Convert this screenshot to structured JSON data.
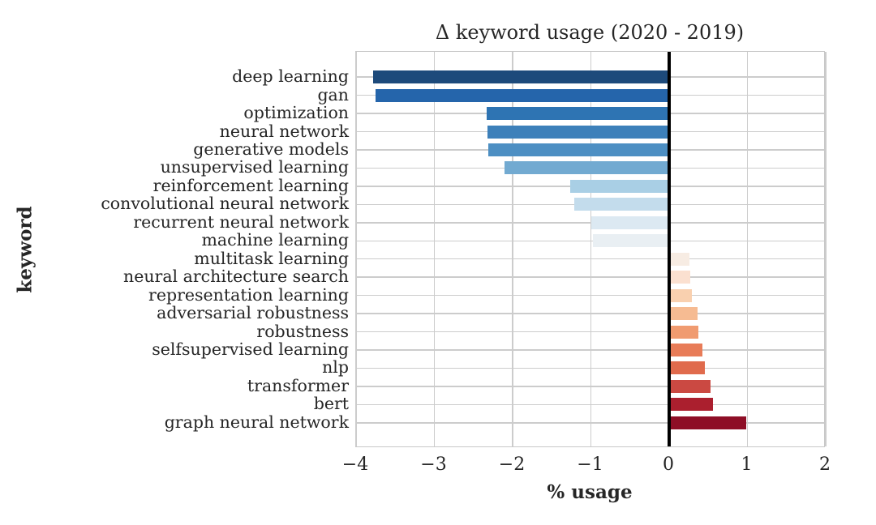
{
  "chart_data": {
    "type": "bar",
    "orientation": "horizontal",
    "title": "Δ keyword usage (2020 - 2019)",
    "xlabel": "% usage",
    "ylabel": "keyword",
    "xlim": [
      -4,
      2
    ],
    "xtick_values": [
      -4,
      -3,
      -2,
      -1,
      0,
      1,
      2
    ],
    "xtick_labels": [
      "−4",
      "−3",
      "−2",
      "−1",
      "0",
      "1",
      "2"
    ],
    "grid": true,
    "legend": "none",
    "zero_line_color": "#000000",
    "grid_color": "#cccccc",
    "categories": [
      "deep learning",
      "gan",
      "optimization",
      "neural network",
      "generative models",
      "unsupervised learning",
      "reinforcement learning",
      "convolutional neural network",
      "recurrent neural network",
      "machine learning",
      "multitask learning",
      "neural architecture search",
      "representation learning",
      "adversarial robustness",
      "robustness",
      "selfsupervised learning",
      "nlp",
      "transformer",
      "bert",
      "graph neural network"
    ],
    "values": [
      -3.78,
      -3.75,
      -2.33,
      -2.32,
      -2.31,
      -2.1,
      -1.26,
      -1.21,
      -1.0,
      -0.97,
      0.26,
      0.27,
      0.29,
      0.36,
      0.37,
      0.43,
      0.46,
      0.53,
      0.56,
      0.98
    ],
    "bar_colors": [
      "#1d4a7b",
      "#2565ab",
      "#2e74b3",
      "#3d80ba",
      "#4d8fc3",
      "#72aad1",
      "#a9cfe5",
      "#c3dcec",
      "#dce9f2",
      "#e9eff3",
      "#f7ece3",
      "#fbe0d0",
      "#f9d0af",
      "#f6bb92",
      "#f09b70",
      "#e87c58",
      "#e06b4d",
      "#cb4942",
      "#ab1f2e",
      "#8e0e26"
    ]
  }
}
